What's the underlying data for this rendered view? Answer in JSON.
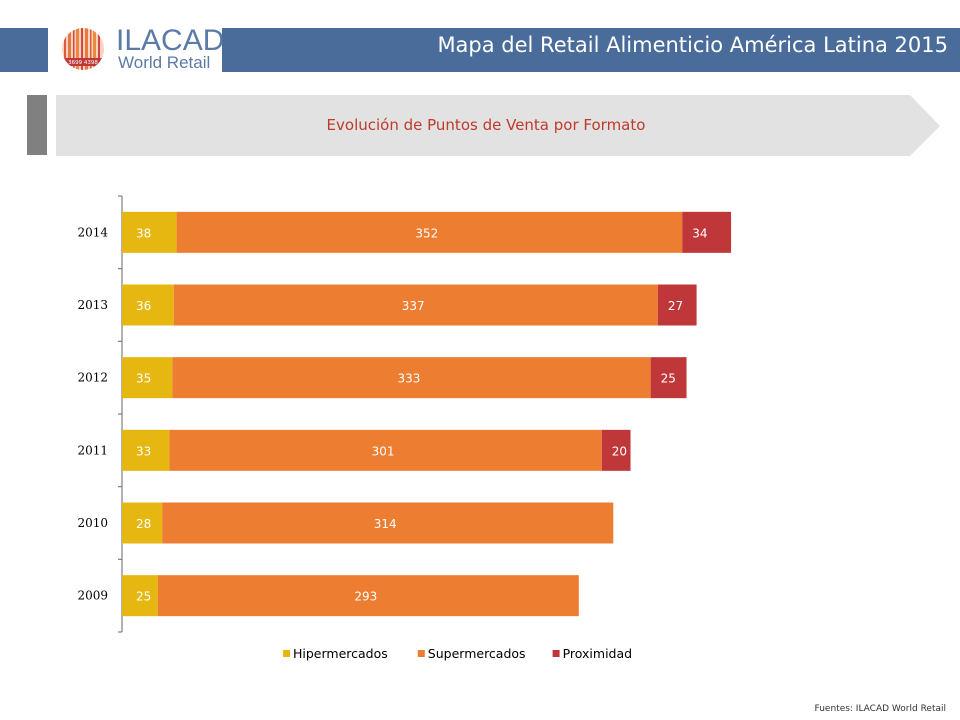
{
  "header": {
    "logo_title": "ILACAD",
    "logo_subtitle": "World Retail",
    "logo_numbers": "3699 4398",
    "title": "Mapa del Retail Alimenticio América Latina 2015",
    "bar_color": "#4a6c9b"
  },
  "subtitle": {
    "text": "Evolución de Puntos de Venta por Formato"
  },
  "chart_data": {
    "type": "bar",
    "orientation": "horizontal",
    "stacked": true,
    "categories": [
      "2014",
      "2013",
      "2012",
      "2011",
      "2010",
      "2009"
    ],
    "series": [
      {
        "name": "Hipermercados",
        "color": "#e6b710",
        "values": [
          38,
          36,
          35,
          33,
          28,
          25
        ]
      },
      {
        "name": "Supermercados",
        "color": "#ed7d31",
        "values": [
          352,
          337,
          333,
          301,
          314,
          293
        ]
      },
      {
        "name": "Proximidad",
        "color": "#c0373a",
        "values": [
          34,
          27,
          25,
          20,
          null,
          null
        ]
      }
    ],
    "data_labels": true,
    "grid": false,
    "legend_position": "bottom",
    "xlim": [
      0,
      430
    ]
  },
  "footer": {
    "source": "Fuentes: ILACAD World Retail"
  }
}
